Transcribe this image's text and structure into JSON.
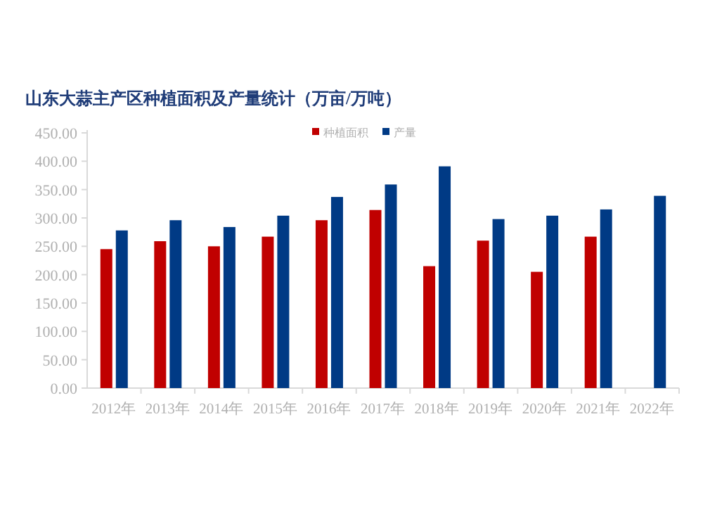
{
  "chart_data": {
    "type": "bar",
    "title": "山东大蒜主产区种植面积及产量统计（万亩/万吨）",
    "categories": [
      "2012年",
      "2013年",
      "2014年",
      "2015年",
      "2016年",
      "2017年",
      "2018年",
      "2019年",
      "2020年",
      "2021年",
      "2022年"
    ],
    "series": [
      {
        "name": "种植面积",
        "color": "#c00000",
        "values": [
          245,
          259,
          250,
          267,
          296,
          314,
          215,
          260,
          205,
          267,
          null
        ]
      },
      {
        "name": "产量",
        "color": "#003a85",
        "values": [
          278,
          296,
          284,
          304,
          337,
          359,
          391,
          298,
          304,
          315,
          339
        ]
      }
    ],
    "ylim": [
      0,
      450
    ],
    "yticks": [
      {
        "value": 0,
        "label": "0.00"
      },
      {
        "value": 50,
        "label": "50.00"
      },
      {
        "value": 100,
        "label": "100.00"
      },
      {
        "value": 150,
        "label": "150.00"
      },
      {
        "value": 200,
        "label": "200.00"
      },
      {
        "value": 250,
        "label": "250.00"
      },
      {
        "value": 300,
        "label": "300.00"
      },
      {
        "value": 350,
        "label": "350.00"
      },
      {
        "value": 400,
        "label": "400.00"
      },
      {
        "value": 450,
        "label": "450.00"
      }
    ],
    "grid": false,
    "legend": "top"
  }
}
